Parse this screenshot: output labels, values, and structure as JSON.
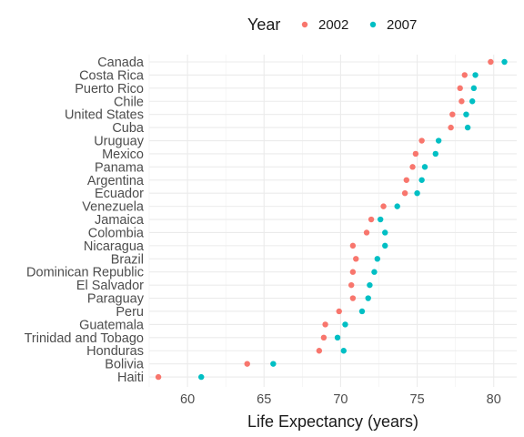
{
  "chart_data": {
    "type": "scatter",
    "title": "",
    "xlabel": "Life Expectancy (years)",
    "ylabel": "",
    "xlim": [
      57.5,
      81.5
    ],
    "x_ticks": [
      60,
      65,
      70,
      75,
      80
    ],
    "grid": true,
    "legend": {
      "title": "Year",
      "position": "top"
    },
    "categories": [
      "Canada",
      "Costa Rica",
      "Puerto Rico",
      "Chile",
      "United States",
      "Cuba",
      "Uruguay",
      "Mexico",
      "Panama",
      "Argentina",
      "Ecuador",
      "Venezuela",
      "Jamaica",
      "Colombia",
      "Nicaragua",
      "Brazil",
      "Dominican Republic",
      "El Salvador",
      "Paraguay",
      "Peru",
      "Guatemala",
      "Trinidad and Tobago",
      "Honduras",
      "Bolivia",
      "Haiti"
    ],
    "series": [
      {
        "name": "2002",
        "color": "#F8766D",
        "values": [
          79.8,
          78.1,
          77.8,
          77.9,
          77.3,
          77.2,
          75.3,
          74.9,
          74.7,
          74.3,
          74.2,
          72.8,
          72.0,
          71.7,
          70.8,
          71.0,
          70.8,
          70.7,
          70.8,
          69.9,
          69.0,
          68.9,
          68.6,
          63.9,
          58.1
        ]
      },
      {
        "name": "2007",
        "color": "#00BFC4",
        "values": [
          80.7,
          78.8,
          78.7,
          78.6,
          78.2,
          78.3,
          76.4,
          76.2,
          75.5,
          75.3,
          75.0,
          73.7,
          72.6,
          72.9,
          72.9,
          72.4,
          72.2,
          71.9,
          71.8,
          71.4,
          70.3,
          69.8,
          70.2,
          65.6,
          60.9
        ]
      }
    ]
  }
}
